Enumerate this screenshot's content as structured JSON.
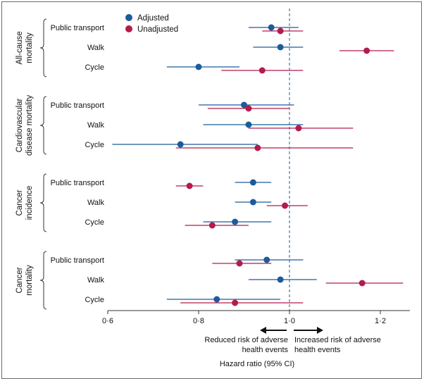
{
  "chart_data": {
    "type": "forest",
    "title": "",
    "xlabel": "Hazard ratio (95% CI)",
    "xlim": [
      0.6,
      1.26
    ],
    "reference_line": 1.0,
    "xticks": [
      {
        "value": 0.6,
        "label": "0·6"
      },
      {
        "value": 0.8,
        "label": "0·8"
      },
      {
        "value": 1.0,
        "label": "1·0"
      },
      {
        "value": 1.2,
        "label": "1·2"
      }
    ],
    "legend": [
      {
        "name": "Adjusted",
        "color": "#1c5c9b"
      },
      {
        "name": "Unadjusted",
        "color": "#b31b4b"
      }
    ],
    "annotations": {
      "left_line1": "Reduced risk of adverse",
      "left_line2": "health events",
      "right_line1": "Increased risk of adverse",
      "right_line2": "health events"
    },
    "groups": [
      {
        "label_lines": [
          "All-cause",
          "mortality"
        ],
        "rows": [
          {
            "label": "Public transport",
            "adjusted": {
              "hr": 0.96,
              "lo": 0.91,
              "hi": 1.02
            },
            "unadjusted": {
              "hr": 0.98,
              "lo": 0.94,
              "hi": 1.03
            }
          },
          {
            "label": "Walk",
            "adjusted": {
              "hr": 0.98,
              "lo": 0.92,
              "hi": 1.03
            },
            "unadjusted": {
              "hr": 1.17,
              "lo": 1.11,
              "hi": 1.23
            }
          },
          {
            "label": "Cycle",
            "adjusted": {
              "hr": 0.8,
              "lo": 0.73,
              "hi": 0.89
            },
            "unadjusted": {
              "hr": 0.94,
              "lo": 0.85,
              "hi": 1.03
            }
          }
        ]
      },
      {
        "label_lines": [
          "Cardiovascular",
          "disease mortality"
        ],
        "rows": [
          {
            "label": "Public transport",
            "adjusted": {
              "hr": 0.9,
              "lo": 0.8,
              "hi": 1.01
            },
            "unadjusted": {
              "hr": 0.91,
              "lo": 0.82,
              "hi": 1.0
            }
          },
          {
            "label": "Walk",
            "adjusted": {
              "hr": 0.91,
              "lo": 0.81,
              "hi": 1.03
            },
            "unadjusted": {
              "hr": 1.02,
              "lo": 0.91,
              "hi": 1.14
            }
          },
          {
            "label": "Cycle",
            "adjusted": {
              "hr": 0.76,
              "lo": 0.61,
              "hi": 0.93
            },
            "unadjusted": {
              "hr": 0.93,
              "lo": 0.75,
              "hi": 1.14
            }
          }
        ]
      },
      {
        "label_lines": [
          "Cancer",
          "incidence"
        ],
        "rows": [
          {
            "label": "Public transport",
            "adjusted": {
              "hr": 0.92,
              "lo": 0.88,
              "hi": 0.96
            },
            "unadjusted": {
              "hr": 0.78,
              "lo": 0.75,
              "hi": 0.81
            }
          },
          {
            "label": "Walk",
            "adjusted": {
              "hr": 0.92,
              "lo": 0.88,
              "hi": 0.96
            },
            "unadjusted": {
              "hr": 0.99,
              "lo": 0.95,
              "hi": 1.04
            }
          },
          {
            "label": "Cycle",
            "adjusted": {
              "hr": 0.88,
              "lo": 0.81,
              "hi": 0.96
            },
            "unadjusted": {
              "hr": 0.83,
              "lo": 0.77,
              "hi": 0.91
            }
          }
        ]
      },
      {
        "label_lines": [
          "Cancer",
          "mortality"
        ],
        "rows": [
          {
            "label": "Public transport",
            "adjusted": {
              "hr": 0.95,
              "lo": 0.88,
              "hi": 1.03
            },
            "unadjusted": {
              "hr": 0.89,
              "lo": 0.83,
              "hi": 0.96
            }
          },
          {
            "label": "Walk",
            "adjusted": {
              "hr": 0.98,
              "lo": 0.91,
              "hi": 1.06
            },
            "unadjusted": {
              "hr": 1.16,
              "lo": 1.08,
              "hi": 1.25
            }
          },
          {
            "label": "Cycle",
            "adjusted": {
              "hr": 0.84,
              "lo": 0.73,
              "hi": 0.98
            },
            "unadjusted": {
              "hr": 0.88,
              "lo": 0.76,
              "hi": 1.03
            }
          }
        ]
      }
    ]
  }
}
